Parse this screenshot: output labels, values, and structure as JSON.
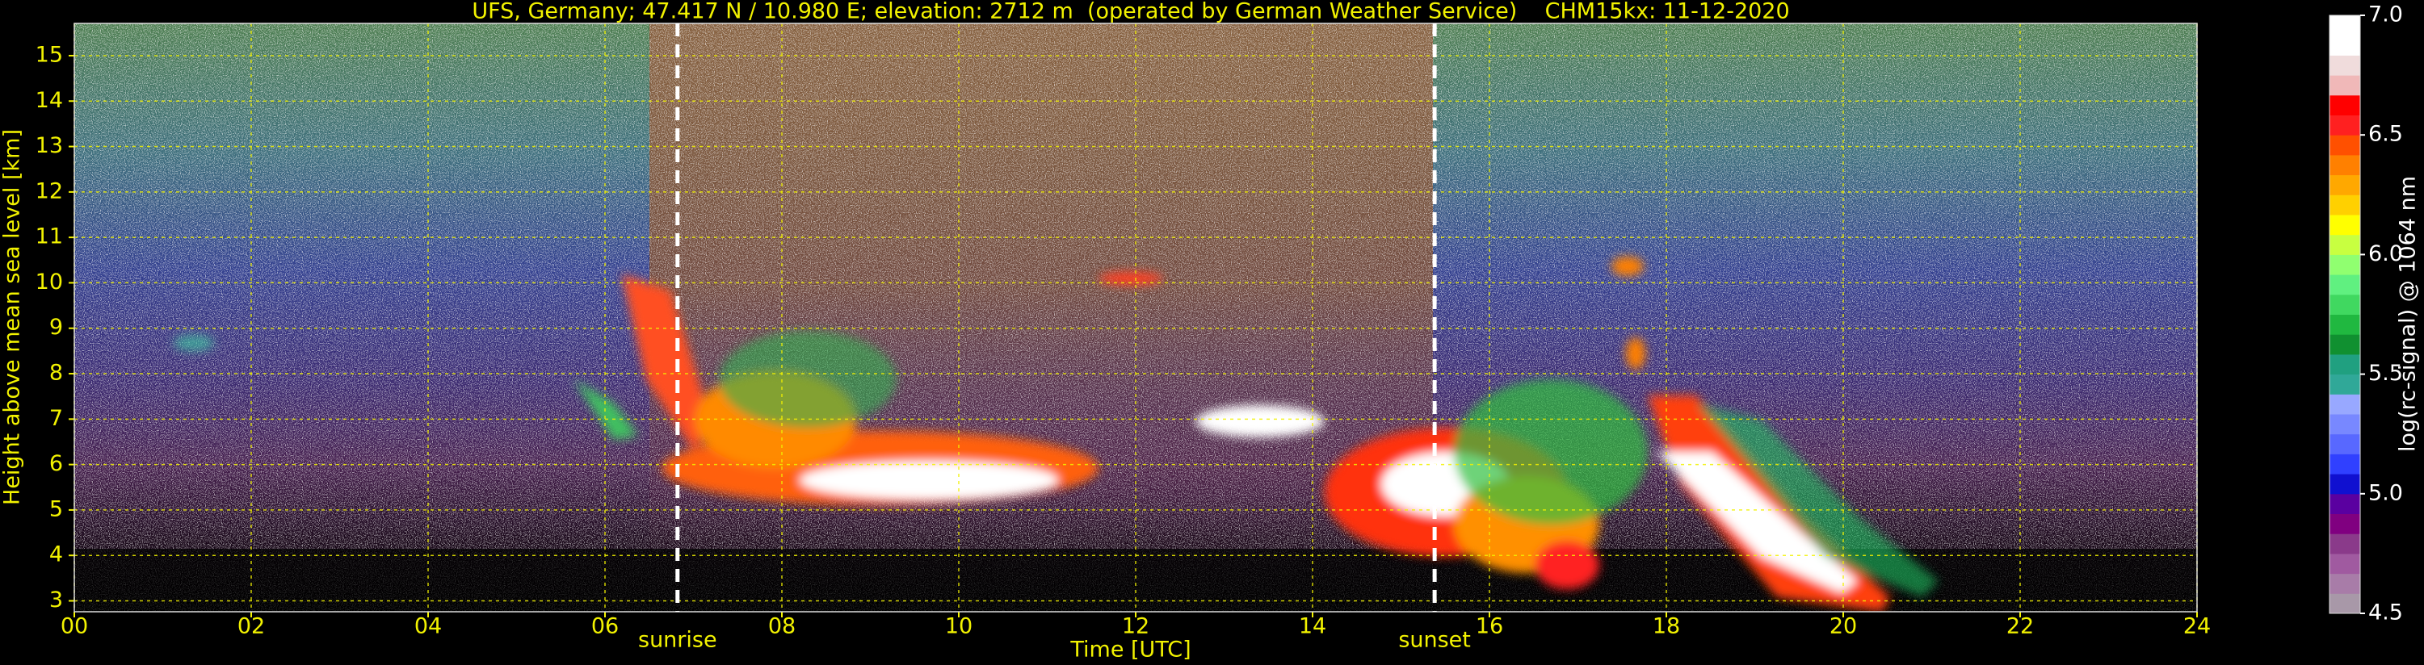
{
  "chart_data": {
    "type": "ceilometer",
    "title": "UFS, Germany; 47.417 N / 10.980 E; elevation: 2712 m  (operated by German Weather Service)    CHM15kx: 11-12-2020",
    "xlabel": "Time [UTC]",
    "ylabel": "Height above mean sea level [km]",
    "xlim": [
      0,
      24
    ],
    "xticks": [
      {
        "value": 0,
        "label": "00"
      },
      {
        "value": 2,
        "label": "02"
      },
      {
        "value": 4,
        "label": "04"
      },
      {
        "value": 6,
        "label": "06"
      },
      {
        "value": 8,
        "label": "08"
      },
      10,
      12,
      14,
      16,
      18,
      20,
      22,
      24
    ],
    "ylim": [
      2.76,
      15.71
    ],
    "yticks": [
      3,
      4,
      5,
      6,
      7,
      8,
      9,
      10,
      11,
      12,
      13,
      14,
      15
    ],
    "grid": true,
    "annotations": [
      {
        "text": "sunrise",
        "x": 6.82
      },
      {
        "text": "sunset",
        "x": 15.38
      }
    ],
    "colorbar": {
      "label": "log(rc-signal) @ 1064 nm",
      "lim": [
        4.5,
        7.0
      ],
      "ticks": [
        4.5,
        {
          "value": 5.0,
          "label": "5.0"
        },
        5.5,
        {
          "value": 6.0,
          "label": "6.0"
        },
        6.5,
        {
          "value": 7.0,
          "label": "7.0"
        }
      ],
      "colors": [
        "#a898a8",
        "#a87ca8",
        "#a05aa0",
        "#8a3a8a",
        "#800080",
        "#5a00a0",
        "#1010d0",
        "#3040ff",
        "#5868ff",
        "#7888ff",
        "#98a8ff",
        "#30a898",
        "#20a080",
        "#109030",
        "#20b840",
        "#40d860",
        "#60f080",
        "#90ff70",
        "#c8ff40",
        "#ffff00",
        "#ffd000",
        "#ffa800",
        "#ff8000",
        "#ff5000",
        "#ff2020",
        "#ff0000",
        "#f0b8b8",
        "#f0dcdc",
        "#ffffff",
        "#ffffff"
      ]
    }
  }
}
